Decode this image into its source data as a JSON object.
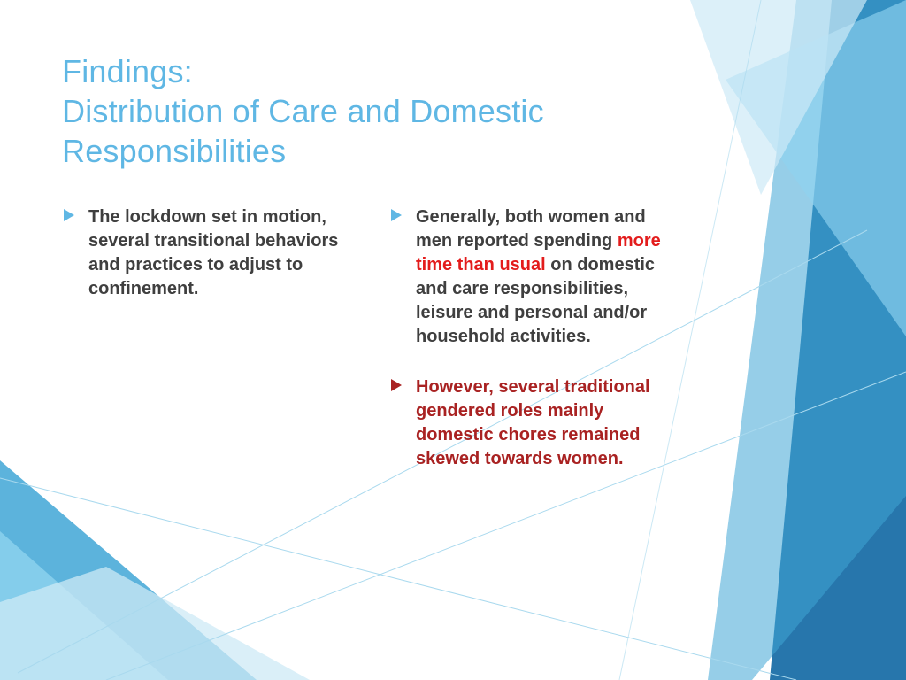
{
  "colors": {
    "title": "#5fb7e4",
    "body_dark": "#3f3f3f",
    "highlight_red": "#e31c1c",
    "emphasis_maroon": "#a92222",
    "bullet_blue": "#5fb7e4",
    "bullet_maroon": "#a92222",
    "bg_white": "#ffffff",
    "shape_dark": "#1b6fa8",
    "shape_mid": "#3fa6d6",
    "shape_light": "#8fd3ef",
    "shape_pale": "#cdeaf6",
    "shape_stroke": "#a9d9ee"
  },
  "title": {
    "line1": "Findings:",
    "line2": "Distribution of Care and Domestic",
    "line3": "Responsibilities"
  },
  "left_col": [
    {
      "arrow_color": "#5fb7e4",
      "segments": [
        {
          "text": "The lockdown set in motion, several transitional behaviors and practices to adjust to confinement.",
          "color": "#3f3f3f"
        }
      ]
    }
  ],
  "right_col": [
    {
      "arrow_color": "#5fb7e4",
      "segments": [
        {
          "text": "Generally, both women and men reported spending ",
          "color": "#3f3f3f"
        },
        {
          "text": "more time than usual",
          "color": "#e31c1c"
        },
        {
          "text": " on domestic and care responsibilities, leisure and personal and/or household activities",
          "color": "#3f3f3f"
        },
        {
          "text": ".",
          "color": "#3f3f3f"
        }
      ]
    },
    {
      "arrow_color": "#a92222",
      "segments": [
        {
          "text": "However, several traditional gendered roles mainly domestic chores remained skewed towards women",
          "color": "#a92222"
        },
        {
          "text": ".",
          "color": "#a92222"
        }
      ]
    }
  ],
  "typography": {
    "title_fontsize": 36,
    "body_fontsize": 20,
    "body_weight": 700
  }
}
